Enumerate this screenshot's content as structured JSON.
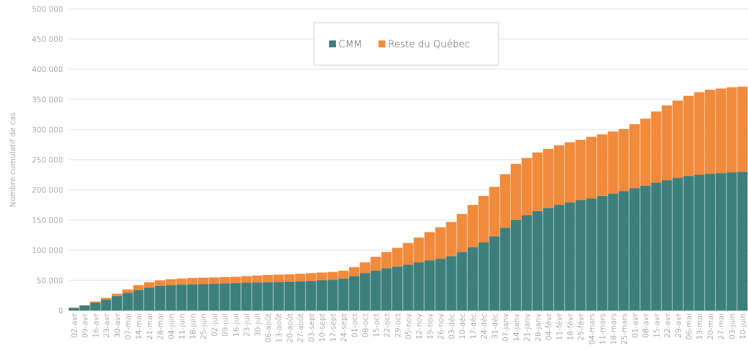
{
  "chart_data": {
    "type": "stacked_bar",
    "y_axis_label": "Nombre cumulatif de cas",
    "categories": [
      "02-avr",
      "09-avr",
      "16-avr",
      "23-avr",
      "30-avr",
      "07-mai",
      "14-mai",
      "21-mai",
      "28-mai",
      "04-juin",
      "11-juin",
      "18-juin",
      "25-juin",
      "02-juil",
      "09-juil",
      "16-juil",
      "23-juil",
      "30-juil",
      "06-août",
      "13-août",
      "20-août",
      "27-août",
      "03-sept",
      "10-sept",
      "17-sept",
      "24-sept",
      "01-oct",
      "08-oct",
      "15-oct",
      "22-oct",
      "29-oct",
      "05-nov",
      "12-nov",
      "19-nov",
      "26-nov",
      "03-déc",
      "10-déc",
      "17-déc",
      "24-déc",
      "31-déc",
      "07-janv",
      "14-janv",
      "21-janv",
      "28-janv",
      "04-févr",
      "11-févr",
      "18-févr",
      "25-févr",
      "04-mars",
      "11-mars",
      "18-mars",
      "25-mars",
      "01-avr",
      "08-avr",
      "15-avr",
      "22-avr",
      "29-avr",
      "06-mai",
      "13-mai",
      "20-mai",
      "27-mai",
      "03-juin",
      "10-juin"
    ],
    "series": [
      {
        "name": "CMM",
        "color": "#3d7f7c",
        "values": [
          4000,
          8000,
          13000,
          18000,
          24000,
          29000,
          34000,
          38000,
          41000,
          42000,
          43000,
          43500,
          44000,
          44500,
          45000,
          45500,
          46000,
          46500,
          47000,
          47500,
          48000,
          48500,
          49000,
          50000,
          51000,
          53000,
          57000,
          62000,
          66000,
          70000,
          73000,
          76000,
          80000,
          83000,
          86000,
          90000,
          97000,
          105000,
          113000,
          123000,
          137000,
          150000,
          158000,
          165000,
          170000,
          175000,
          179000,
          183000,
          186000,
          190000,
          194000,
          198000,
          203000,
          207000,
          212000,
          216000,
          220000,
          223000,
          225000,
          227000,
          228000,
          229000,
          230000
        ]
      },
      {
        "name": "Reste du Québec",
        "color": "#f28a3b",
        "values": [
          1000,
          1000,
          2000,
          3000,
          4000,
          6000,
          8000,
          9000,
          9000,
          10000,
          10000,
          10500,
          10500,
          10500,
          10500,
          10500,
          11000,
          11500,
          12000,
          12000,
          12000,
          12500,
          13000,
          13000,
          13000,
          13000,
          15000,
          18000,
          23000,
          27000,
          31000,
          36000,
          41000,
          47000,
          52000,
          57000,
          63000,
          70000,
          77000,
          82000,
          89000,
          93000,
          95000,
          97000,
          98000,
          99000,
          100000,
          100000,
          102000,
          102000,
          103000,
          103000,
          106000,
          111000,
          118000,
          124000,
          128000,
          133000,
          137000,
          139000,
          140000,
          141000,
          141000
        ]
      }
    ],
    "ylim": [
      0,
      500000
    ],
    "yticks": [
      0,
      {
        "value": 50000,
        "label": "50 000"
      },
      {
        "value": 100000,
        "label": "100 000"
      },
      {
        "value": 150000,
        "label": "150 000"
      },
      {
        "value": 200000,
        "label": "200 000"
      },
      {
        "value": 250000,
        "label": "250 000"
      },
      {
        "value": 300000,
        "label": "300 000"
      },
      {
        "value": 350000,
        "label": "350 000"
      },
      {
        "value": 400000,
        "label": "400 000"
      },
      {
        "value": 450000,
        "label": "450 000"
      },
      {
        "value": 500000,
        "label": "500 000"
      }
    ],
    "grid": true,
    "legend": "top"
  }
}
